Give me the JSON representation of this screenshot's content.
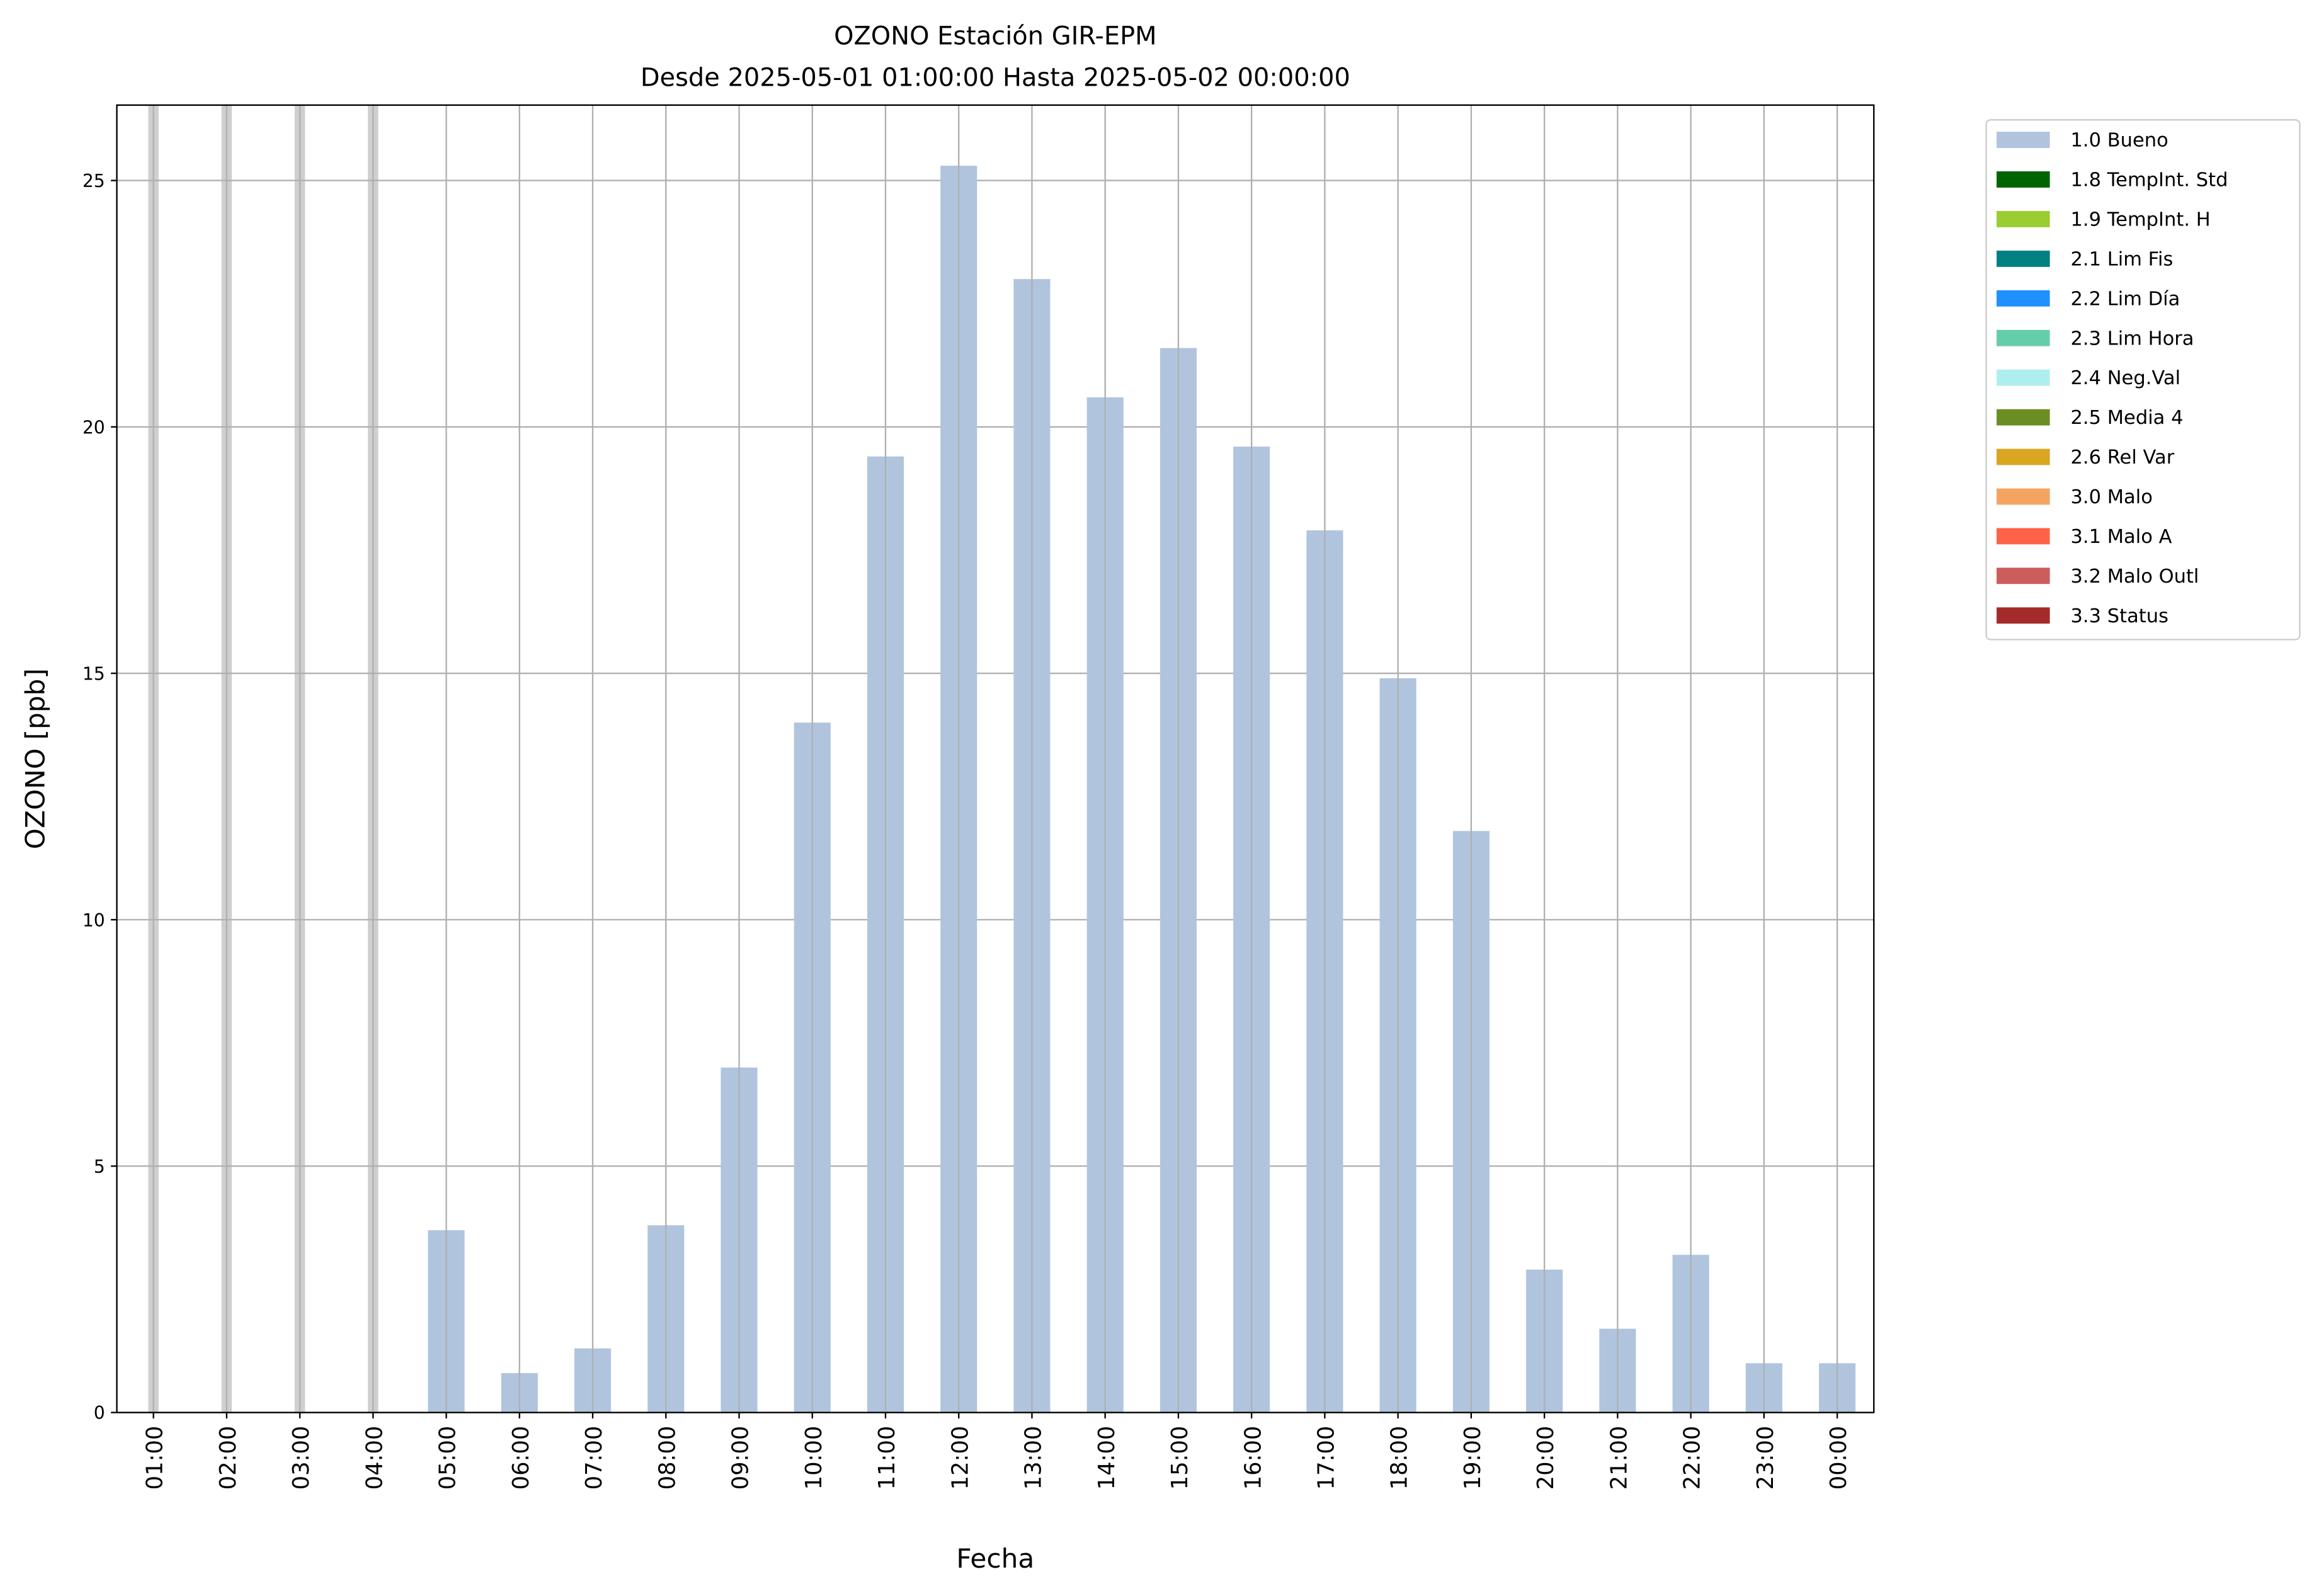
{
  "chart_data": {
    "type": "bar",
    "title": "OZONO Estación GIR-EPM",
    "subtitle": "Desde 2025-05-01 01:00:00 Hasta 2025-05-02 00:00:00",
    "x_label": "Fecha",
    "y_label": "OZONO [ppb]",
    "categories": [
      "01:00",
      "02:00",
      "03:00",
      "04:00",
      "05:00",
      "06:00",
      "07:00",
      "08:00",
      "09:00",
      "10:00",
      "11:00",
      "12:00",
      "13:00",
      "14:00",
      "15:00",
      "16:00",
      "17:00",
      "18:00",
      "19:00",
      "20:00",
      "21:00",
      "22:00",
      "23:00",
      "00:00"
    ],
    "values": [
      null,
      null,
      null,
      null,
      3.7,
      0.8,
      1.3,
      3.8,
      7.0,
      14.0,
      19.4,
      25.3,
      23.0,
      20.6,
      21.6,
      19.6,
      17.9,
      14.9,
      11.8,
      2.9,
      1.7,
      3.2,
      1.0,
      1.0
    ],
    "color": "#b0c4de",
    "ylim": [
      0,
      26.53
    ],
    "yticks": [
      0,
      5,
      10,
      15,
      20,
      25
    ],
    "grid": true,
    "legend_position": "outside right",
    "legend": [
      {
        "name": "1.0 Bueno",
        "color": "#b0c4de"
      },
      {
        "name": "1.8 TempInt. Std",
        "color": "#006400"
      },
      {
        "name": "1.9 TempInt. H",
        "color": "#9acd32"
      },
      {
        "name": "2.1 Lim Fis",
        "color": "#008080"
      },
      {
        "name": "2.2 Lim Día",
        "color": "#1e90ff"
      },
      {
        "name": "2.3 Lim Hora",
        "color": "#66cdaa"
      },
      {
        "name": "2.4 Neg.Val",
        "color": "#afeeee"
      },
      {
        "name": "2.5 Media 4",
        "color": "#6b8e23"
      },
      {
        "name": "2.6 Rel Var",
        "color": "#daa520"
      },
      {
        "name": "3.0 Malo",
        "color": "#f4a460"
      },
      {
        "name": "3.1 Malo A",
        "color": "#ff6347"
      },
      {
        "name": "3.2 Malo Outl",
        "color": "#cd5c5c"
      },
      {
        "name": "3.3 Status",
        "color": "#a52a2a"
      }
    ]
  }
}
